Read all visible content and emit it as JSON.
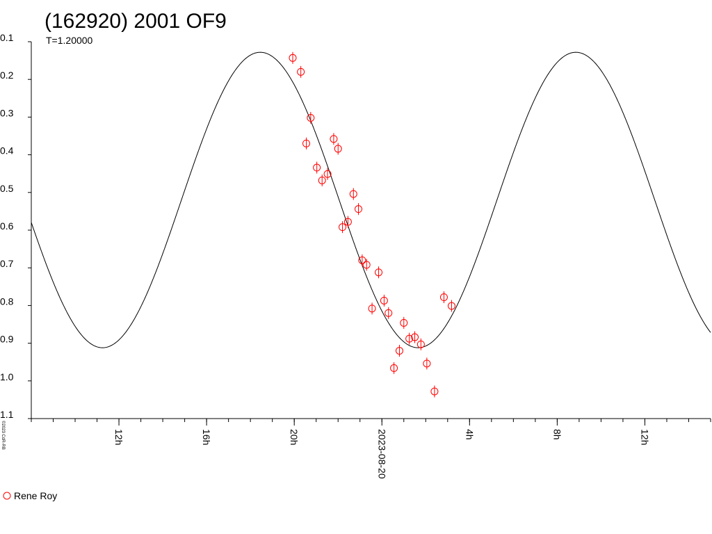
{
  "chart_data": {
    "type": "scatter",
    "title": "(162920) 2001 OF9",
    "subtitle": "T=1.20000",
    "credit": "©2023 CdR-RB",
    "y_inverted": true,
    "ylim": [
      0.1,
      1.1
    ],
    "yticks": [
      "0.1",
      "0.2",
      "0.3",
      "0.4",
      "0.5",
      "0.6",
      "0.7",
      "0.8",
      "0.9",
      "1.0",
      "1.1"
    ],
    "x_unit": "hours after 2023-08-19 08:10 UT",
    "xlim": [
      0,
      31.0
    ],
    "xticks": [
      {
        "x": 4.0,
        "label": "12h"
      },
      {
        "x": 8.0,
        "label": "16h"
      },
      {
        "x": 12.0,
        "label": "20h"
      },
      {
        "x": 16.0,
        "label": "2023-08-20"
      },
      {
        "x": 20.0,
        "label": "4h"
      },
      {
        "x": 24.0,
        "label": "8h"
      },
      {
        "x": 28.0,
        "label": "12h"
      }
    ],
    "minor_tick_step": 1.0,
    "series": [
      {
        "name": "Rene Roy",
        "color": "#ff0000",
        "marker": "circle-with-errorbar",
        "points": [
          {
            "x": 11.93,
            "y": 0.143,
            "err": 0.012
          },
          {
            "x": 12.3,
            "y": 0.18,
            "err": 0.012
          },
          {
            "x": 12.55,
            "y": 0.37,
            "err": 0.012
          },
          {
            "x": 12.75,
            "y": 0.302,
            "err": 0.012
          },
          {
            "x": 13.03,
            "y": 0.434,
            "err": 0.012
          },
          {
            "x": 13.27,
            "y": 0.468,
            "err": 0.012
          },
          {
            "x": 13.52,
            "y": 0.451,
            "err": 0.012
          },
          {
            "x": 13.8,
            "y": 0.358,
            "err": 0.012
          },
          {
            "x": 14.0,
            "y": 0.384,
            "err": 0.012
          },
          {
            "x": 14.2,
            "y": 0.592,
            "err": 0.012
          },
          {
            "x": 14.45,
            "y": 0.578,
            "err": 0.012
          },
          {
            "x": 14.7,
            "y": 0.504,
            "err": 0.012
          },
          {
            "x": 14.93,
            "y": 0.544,
            "err": 0.012
          },
          {
            "x": 15.1,
            "y": 0.68,
            "err": 0.012
          },
          {
            "x": 15.3,
            "y": 0.692,
            "err": 0.012
          },
          {
            "x": 15.55,
            "y": 0.808,
            "err": 0.012
          },
          {
            "x": 15.85,
            "y": 0.712,
            "err": 0.012
          },
          {
            "x": 16.1,
            "y": 0.787,
            "err": 0.012
          },
          {
            "x": 16.3,
            "y": 0.82,
            "err": 0.012
          },
          {
            "x": 16.55,
            "y": 0.966,
            "err": 0.012
          },
          {
            "x": 16.8,
            "y": 0.92,
            "err": 0.012
          },
          {
            "x": 17.0,
            "y": 0.846,
            "err": 0.012
          },
          {
            "x": 17.25,
            "y": 0.888,
            "err": 0.012
          },
          {
            "x": 17.5,
            "y": 0.884,
            "err": 0.012
          },
          {
            "x": 17.78,
            "y": 0.903,
            "err": 0.012
          },
          {
            "x": 18.05,
            "y": 0.954,
            "err": 0.012
          },
          {
            "x": 18.4,
            "y": 1.028,
            "err": 0.012
          },
          {
            "x": 18.83,
            "y": 0.778,
            "err": 0.012
          },
          {
            "x": 19.18,
            "y": 0.801,
            "err": 0.012
          }
        ]
      }
    ],
    "model_curve": {
      "color": "#000000",
      "period_h": 14.4,
      "mean": 0.52,
      "amplitude": 0.392,
      "max_x": 10.45
    },
    "legend": {
      "position": "bottom-left",
      "label": "Rene Roy"
    }
  }
}
